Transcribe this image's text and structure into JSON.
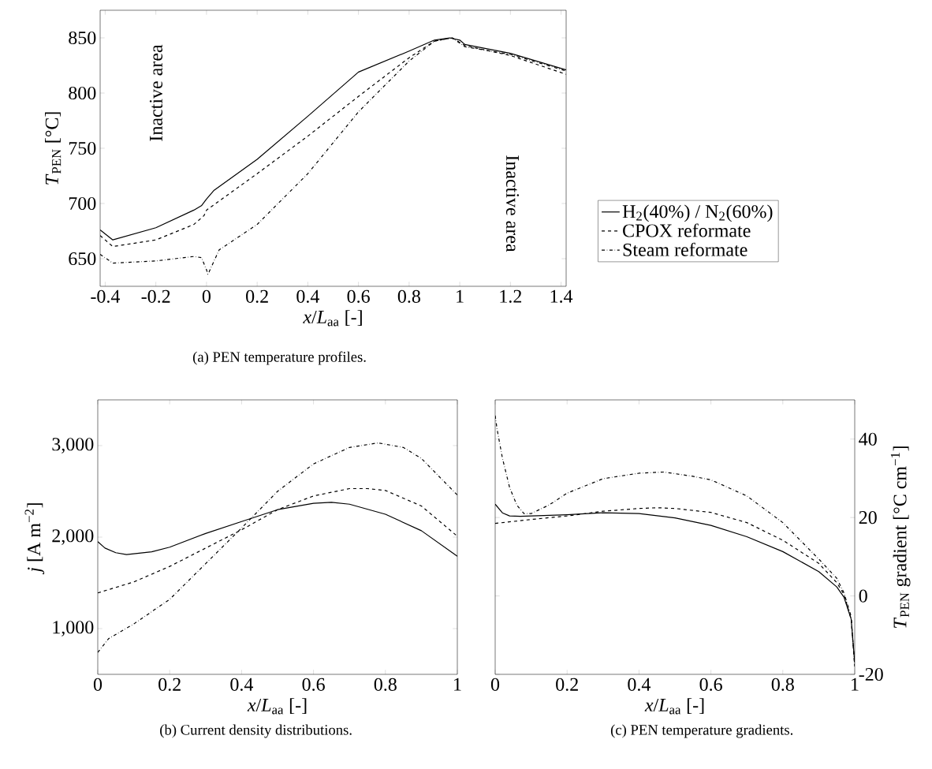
{
  "chart_data": [
    {
      "type": "line",
      "title": "(a) PEN temperature profiles.",
      "xlabel": "*x*/*L*$_{aa}$ [-]",
      "ylabel": "*T*$_{PEN}$ [°C]",
      "xlim": [
        -0.42,
        1.42
      ],
      "xticks": [
        -0.4,
        -0.2,
        0,
        0.2,
        0.4,
        0.6,
        0.8,
        1,
        1.2,
        1.4
      ],
      "ylim": [
        625,
        875
      ],
      "yticks": [
        650,
        700,
        750,
        800,
        850
      ],
      "legend": "right",
      "annotations": [
        "Inactive area",
        "Inactive area"
      ],
      "series": [
        {
          "name": "H$_{2}$(40%) / N$_{2}$(60%)",
          "color": "#000000",
          "line_style": "solid",
          "x": [
            -0.42,
            -0.37,
            -0.2,
            -0.05,
            -0.02,
            0,
            0.03,
            0.2,
            0.4,
            0.6,
            0.8,
            0.9,
            0.96,
            1.0,
            1.02,
            1.2,
            1.42
          ],
          "values": [
            676,
            667,
            678,
            694,
            698,
            704,
            712,
            740,
            779,
            819,
            838,
            848,
            850,
            848,
            844,
            836,
            821
          ]
        },
        {
          "name": "CPOX reformate",
          "color": "#000000",
          "line_style": "dashed",
          "x": [
            -0.42,
            -0.37,
            -0.2,
            -0.05,
            -0.01,
            0,
            0.2,
            0.4,
            0.6,
            0.8,
            0.9,
            0.97,
            1.02,
            1.2,
            1.42
          ],
          "values": [
            671,
            661,
            667,
            681,
            689,
            694,
            727,
            761,
            797,
            832,
            847,
            850,
            843,
            834,
            817
          ]
        },
        {
          "name": "Steam reformate",
          "color": "#000000",
          "line_style": "dashdot",
          "x": [
            -0.42,
            -0.37,
            -0.2,
            -0.05,
            -0.02,
            0,
            0.005,
            0.01,
            0.05,
            0.2,
            0.4,
            0.6,
            0.8,
            0.9,
            0.97,
            1.02,
            1.2,
            1.42
          ],
          "values": [
            654,
            646,
            648,
            652,
            651,
            640,
            636,
            638,
            658,
            681,
            727,
            783,
            829,
            847,
            850,
            842,
            835,
            820
          ]
        }
      ]
    },
    {
      "type": "line",
      "title": "(b) Current density distributions.",
      "xlabel": "*x*/*L*$_{aa}$ [-]",
      "ylabel": "*j* [A m$^{−2}$]",
      "xlim": [
        0,
        1
      ],
      "xticks": [
        0,
        0.2,
        0.4,
        0.6,
        0.8,
        1
      ],
      "ylim": [
        500,
        3500
      ],
      "yticks": [
        {
          "value": 1000,
          "label": "1,000"
        },
        {
          "value": 2000,
          "label": "2,000"
        },
        {
          "value": 3000,
          "label": "3,000"
        }
      ],
      "series": [
        {
          "color": "#000000",
          "line_style": "solid",
          "x": [
            0,
            0.02,
            0.05,
            0.08,
            0.15,
            0.2,
            0.3,
            0.4,
            0.5,
            0.6,
            0.65,
            0.7,
            0.8,
            0.9,
            1.0
          ],
          "values": [
            1950,
            1880,
            1830,
            1810,
            1840,
            1890,
            2040,
            2170,
            2300,
            2370,
            2380,
            2360,
            2250,
            2070,
            1790
          ]
        },
        {
          "color": "#000000",
          "line_style": "dashed",
          "x": [
            0,
            0.1,
            0.2,
            0.3,
            0.4,
            0.5,
            0.6,
            0.7,
            0.75,
            0.8,
            0.9,
            1.0
          ],
          "values": [
            1390,
            1510,
            1680,
            1880,
            2080,
            2300,
            2450,
            2530,
            2530,
            2510,
            2340,
            2010
          ]
        },
        {
          "color": "#000000",
          "line_style": "dashdot",
          "x": [
            0,
            0.03,
            0.1,
            0.2,
            0.3,
            0.4,
            0.5,
            0.6,
            0.7,
            0.78,
            0.85,
            0.9,
            1.0
          ],
          "values": [
            740,
            890,
            1050,
            1320,
            1710,
            2100,
            2500,
            2800,
            2980,
            3030,
            2980,
            2860,
            2460
          ]
        }
      ]
    },
    {
      "type": "line",
      "title": "(c) PEN temperature gradients.",
      "xlabel": "*x*/*L*$_{aa}$ [-]",
      "y2label": "*T*$_{PEN}$ gradient [°C cm$^{−1}$]",
      "xlim": [
        0,
        1
      ],
      "xticks": [
        0,
        0.2,
        0.4,
        0.6,
        0.8,
        1
      ],
      "y2lim": [
        -20,
        50
      ],
      "y2ticks": [
        -20,
        0,
        20,
        40
      ],
      "series": [
        {
          "axis": "y2",
          "color": "#000000",
          "line_style": "solid",
          "x": [
            0,
            0.02,
            0.04,
            0.07,
            0.2,
            0.3,
            0.4,
            0.5,
            0.6,
            0.7,
            0.8,
            0.9,
            0.95,
            0.97,
            0.99,
            1.0
          ],
          "values": [
            23.4,
            21.2,
            20.4,
            20.3,
            20.7,
            21.2,
            21,
            19.9,
            18,
            15.1,
            11.3,
            6.2,
            2.3,
            -0.3,
            -5.9,
            -17
          ]
        },
        {
          "axis": "y2",
          "color": "#000000",
          "line_style": "dashed",
          "x": [
            0,
            0.1,
            0.2,
            0.3,
            0.4,
            0.45,
            0.5,
            0.6,
            0.7,
            0.8,
            0.9,
            0.95,
            0.97,
            0.99,
            1.0
          ],
          "values": [
            18.5,
            19.5,
            20.4,
            21.6,
            22.3,
            22.5,
            22.3,
            21.3,
            18.7,
            14.2,
            8.3,
            3.4,
            0.4,
            -5.9,
            -18
          ]
        },
        {
          "axis": "y2",
          "color": "#000000",
          "line_style": "dashdot",
          "x": [
            0,
            0.005,
            0.02,
            0.04,
            0.06,
            0.08,
            0.1,
            0.15,
            0.2,
            0.3,
            0.4,
            0.47,
            0.55,
            0.6,
            0.7,
            0.8,
            0.9,
            0.95,
            0.97,
            0.99,
            1.0
          ],
          "values": [
            46,
            42.7,
            35.2,
            27.7,
            23.2,
            21,
            21,
            23.2,
            26.2,
            29.9,
            31.3,
            31.6,
            30.5,
            29.6,
            25.5,
            18.7,
            9.4,
            4.5,
            0.8,
            -5.2,
            -18
          ]
        }
      ]
    }
  ]
}
